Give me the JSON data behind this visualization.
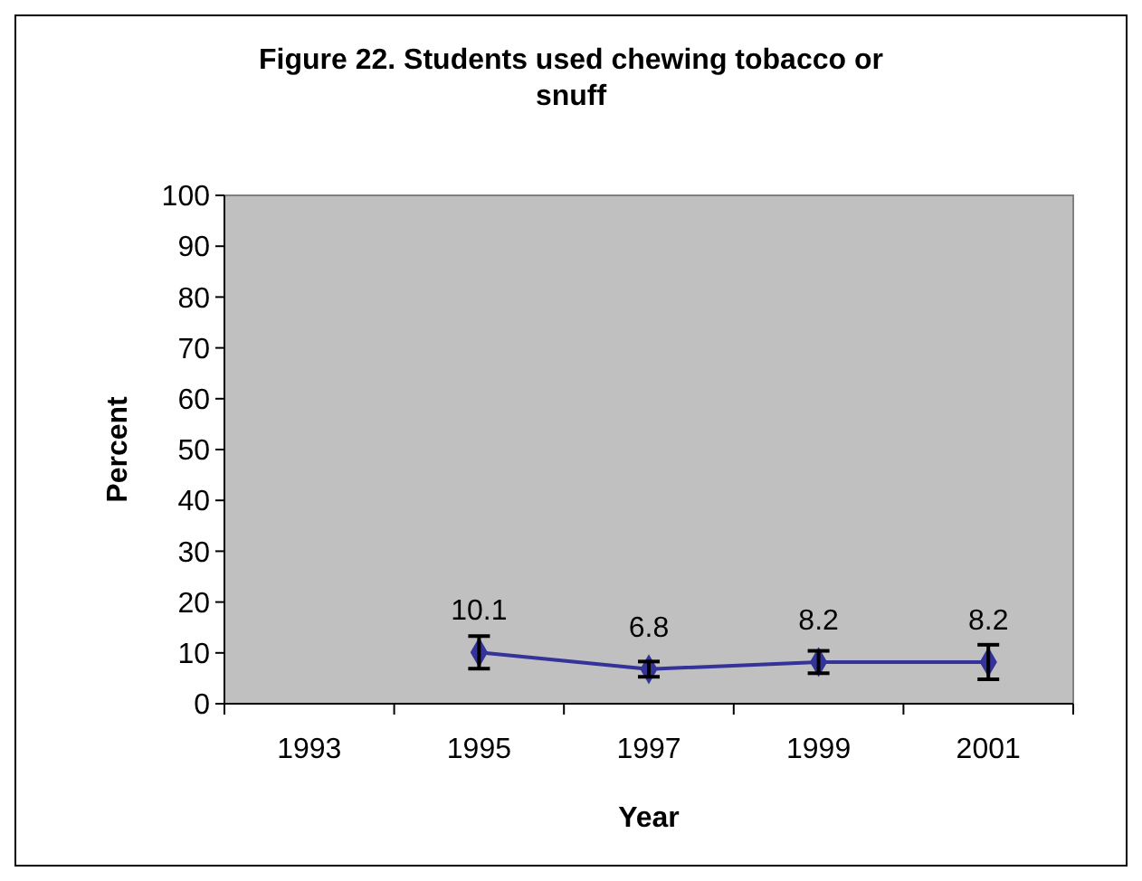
{
  "chart_data": {
    "type": "line",
    "title": "Figure 22. Students used chewing tobacco or snuff",
    "xlabel": "Year",
    "ylabel": "Percent",
    "categories": [
      "1993",
      "1995",
      "1997",
      "1999",
      "2001"
    ],
    "series": [
      {
        "color": "#333399",
        "values": [
          null,
          10.1,
          6.8,
          8.2,
          8.2
        ],
        "errors": [
          null,
          3.2,
          1.5,
          2.2,
          3.4
        ]
      }
    ],
    "data_labels": true,
    "marker": "diamond",
    "ylim": [
      0,
      100
    ],
    "yticks": [
      0,
      10,
      20,
      30,
      40,
      50,
      60,
      70,
      80,
      90,
      100
    ],
    "grid": false
  }
}
